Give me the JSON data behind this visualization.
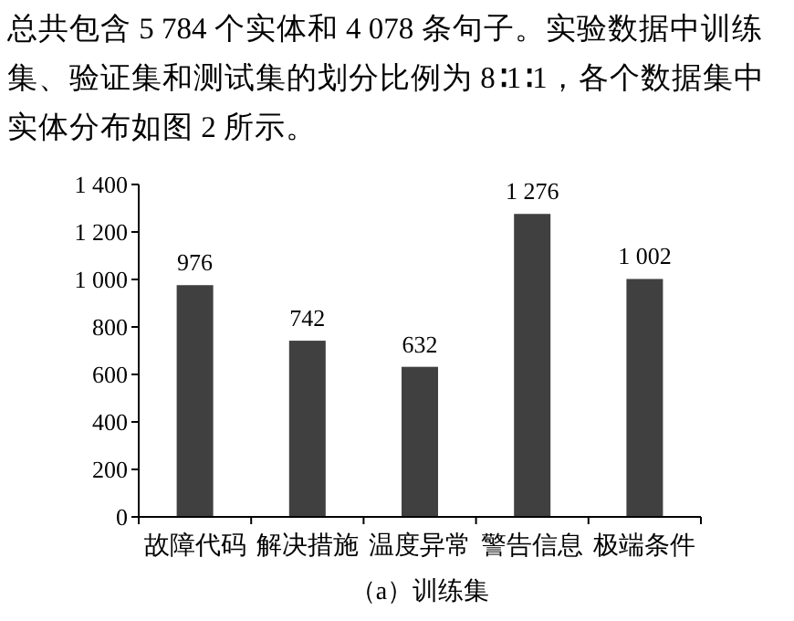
{
  "chart_data": {
    "type": "bar",
    "title": "（a）训练集",
    "annotations": [
      "总共包含 5 784 个实体和 4 078 条句子。实验数据中训练集、验证集和测试集的划分比例为 8∶1∶1，各个数据集中实体分布如图 2 所示。"
    ],
    "categories": [
      "故障代码",
      "解决措施",
      "温度异常",
      "警告信息",
      "极端条件"
    ],
    "values": [
      976,
      742,
      632,
      1276,
      1002
    ],
    "value_labels": [
      "976",
      "742",
      "632",
      "1 276",
      "1 002"
    ],
    "color": "#404040",
    "ylim": [
      0,
      1400
    ],
    "yticks": [
      0,
      200,
      400,
      600,
      800,
      {
        "value": 1000,
        "label": "1 000"
      },
      {
        "value": 1200,
        "label": "1 200"
      },
      {
        "value": 1400,
        "label": "1 400"
      }
    ],
    "grid": false
  }
}
